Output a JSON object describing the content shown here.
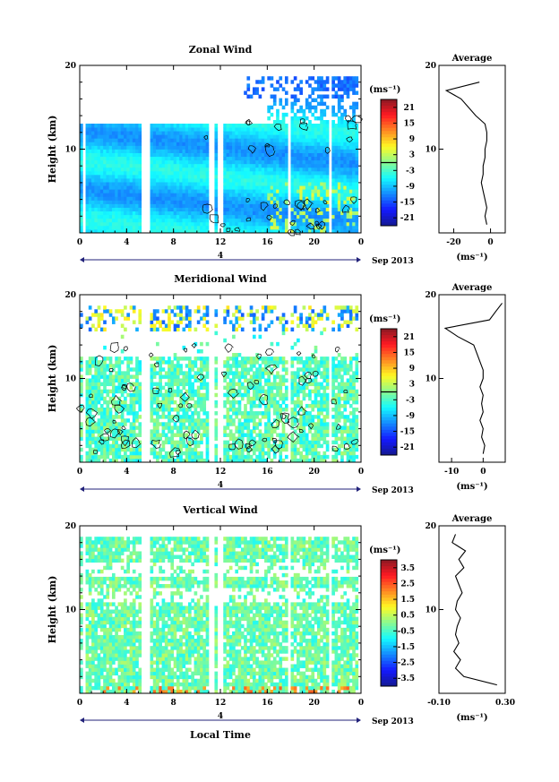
{
  "figure": {
    "common": {
      "xlabel": "Local Time",
      "date_label": "Sep 2013",
      "day_label": "4",
      "ylabel": "Height (km)",
      "xticks": [
        "0",
        "4",
        "8",
        "12",
        "16",
        "20",
        "0"
      ],
      "yticks": [
        "20",
        "10"
      ],
      "unit_label": "(ms⁻¹)",
      "avg_title": "Average"
    }
  },
  "chart_data": [
    {
      "type": "heatmap",
      "title": "Zonal Wind",
      "x_range_hours": [
        0,
        24
      ],
      "ylim": [
        0,
        20
      ],
      "colorbar": {
        "ticks": [
          "21",
          "15",
          "9",
          "3",
          "-3",
          "-9",
          "-15",
          "-21"
        ],
        "range": [
          -24,
          24
        ]
      },
      "profile": {
        "title": "Average",
        "xticks": [
          "-20",
          "0"
        ],
        "xlim": [
          -28,
          8
        ],
        "height_km": [
          1,
          2,
          3,
          4,
          5,
          6,
          7,
          8,
          9,
          10,
          11,
          12,
          13,
          14,
          15,
          16,
          17,
          18
        ],
        "values": [
          -2,
          -3,
          -2,
          -3,
          -4,
          -5,
          -4,
          -4,
          -3,
          -3,
          -2,
          -2,
          -3,
          -8,
          -12,
          -16,
          -24,
          -6
        ]
      }
    },
    {
      "type": "heatmap",
      "title": "Meridional Wind",
      "x_range_hours": [
        0,
        24
      ],
      "ylim": [
        0,
        20
      ],
      "colorbar": {
        "ticks": [
          "21",
          "15",
          "9",
          "3",
          "-3",
          "-9",
          "-15",
          "-21"
        ],
        "range": [
          -24,
          24
        ]
      },
      "profile": {
        "title": "Average",
        "xticks": [
          "-10",
          "0"
        ],
        "xlim": [
          -14,
          7
        ],
        "height_km": [
          1,
          2,
          3,
          4,
          5,
          6,
          7,
          8,
          9,
          10,
          11,
          12,
          13,
          14,
          15,
          16,
          17,
          18,
          19
        ],
        "values": [
          0,
          0.5,
          -0.5,
          0,
          -1,
          0,
          -0.5,
          0,
          -1,
          0,
          0,
          -1,
          -2,
          -3,
          -8,
          -12,
          2,
          4,
          6
        ]
      }
    },
    {
      "type": "heatmap",
      "title": "Vertical Wind",
      "x_range_hours": [
        0,
        24
      ],
      "ylim": [
        0,
        20
      ],
      "colorbar": {
        "ticks": [
          "3.5",
          "2.5",
          "1.5",
          "0.5",
          "-0.5",
          "-1.5",
          "-2.5",
          "-3.5"
        ],
        "range": [
          -4,
          4
        ]
      },
      "profile": {
        "title": "Average",
        "xticks": [
          "-0.10",
          "0.30"
        ],
        "xlim": [
          -0.1,
          0.3
        ],
        "height_km": [
          1,
          2,
          3,
          4,
          5,
          6,
          7,
          8,
          9,
          10,
          11,
          12,
          13,
          14,
          15,
          16,
          17,
          18,
          19
        ],
        "values": [
          0.25,
          0.05,
          0.0,
          0.03,
          -0.01,
          0.02,
          0.0,
          0.01,
          0.03,
          0.0,
          0.01,
          0.04,
          0.02,
          0.0,
          0.05,
          0.02,
          0.06,
          -0.02,
          0.0
        ]
      }
    }
  ]
}
